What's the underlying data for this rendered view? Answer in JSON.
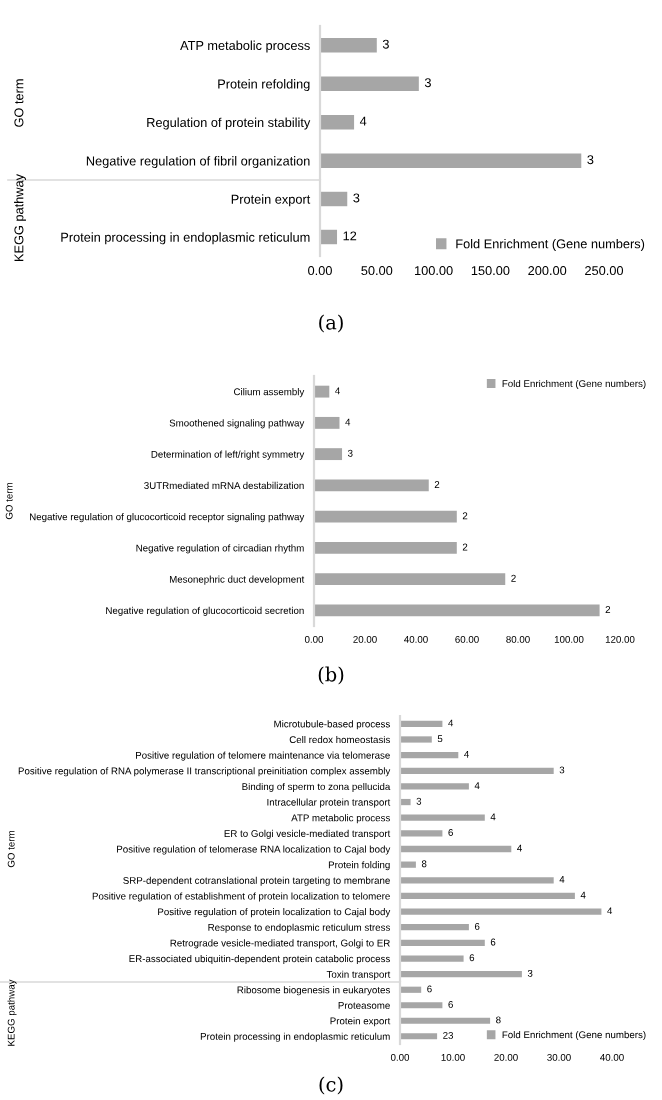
{
  "chart_data": [
    {
      "type": "bar",
      "orientation": "horizontal",
      "ylabel": "GO term",
      "tick_labels": "y",
      "categories": [
        "ATP metabolic process",
        "Protein refolding",
        "Regulation of protein stability",
        "Negative regulation of fibril organization"
      ],
      "series": [
        {
          "color": "#a6a6a6",
          "values": [
            50,
            87,
            30,
            230
          ]
        }
      ],
      "xlim": [
        0,
        250
      ],
      "annotations": [
        {
          "text": "3",
          "x": 50,
          "y": "ATP metabolic process"
        },
        {
          "text": "3",
          "x": 87,
          "y": "Protein refolding"
        },
        {
          "text": "4",
          "x": 30,
          "y": "Regulation of protein stability"
        },
        {
          "text": "3",
          "x": 230,
          "y": "Negative regulation of fibril organization"
        }
      ]
    },
    {
      "type": "bar",
      "orientation": "horizontal",
      "ylabel": "KEGG pathway",
      "categories": [
        "Protein export",
        "Protein processing in endoplasmic reticulum"
      ],
      "series": [
        {
          "name": "Fold Enrichment (Gene numbers)",
          "color": "#a6a6a6",
          "values": [
            24,
            15
          ]
        }
      ],
      "xlim": [
        0,
        250
      ],
      "xticks": [
        {
          "value": 0,
          "label": "0.00"
        },
        {
          "value": 50,
          "label": "50.00"
        },
        {
          "value": 100,
          "label": "100.00"
        },
        {
          "value": 150,
          "label": "150.00"
        },
        {
          "value": 200,
          "label": "200.00"
        },
        {
          "value": 250,
          "label": "250.00"
        }
      ],
      "legend": "bottom right",
      "annotations": [
        {
          "text": "3",
          "x": 24,
          "y": "Protein export"
        },
        {
          "text": "12",
          "x": 15,
          "y": "Protein processing in endoplasmic reticulum"
        },
        "(a)"
      ]
    },
    {
      "type": "bar",
      "orientation": "horizontal",
      "ylabel": "GO term",
      "categories": [
        "Cilium assembly",
        "Smoothened signaling pathway",
        "Determination of left/right symmetry",
        "3UTRmediated mRNA destabilization",
        "Negative regulation of glucocorticoid receptor signaling pathway",
        "Negative regulation of circadian rhythm",
        "Mesonephric duct development",
        "Negative regulation of glucocorticoid secretion"
      ],
      "series": [
        {
          "name": "Fold Enrichment (Gene numbers)",
          "color": "#a6a6a6",
          "values": [
            6,
            10,
            11,
            45,
            56,
            56,
            75,
            112
          ]
        }
      ],
      "xlim": [
        0,
        120
      ],
      "xticks": [
        {
          "value": 0,
          "label": "0.00"
        },
        {
          "value": 20,
          "label": "20.00"
        },
        {
          "value": 40,
          "label": "40.00"
        },
        {
          "value": 60,
          "label": "60.00"
        },
        {
          "value": 80,
          "label": "80.00"
        },
        {
          "value": 100,
          "label": "100.00"
        },
        {
          "value": 120,
          "label": "120.00"
        }
      ],
      "legend": "top right",
      "annotations": [
        {
          "text": "4",
          "x": 6,
          "y": "Cilium assembly"
        },
        {
          "text": "4",
          "x": 10,
          "y": "Smoothened signaling pathway"
        },
        {
          "text": "3",
          "x": 11,
          "y": "Determination of left/right symmetry"
        },
        {
          "text": "2",
          "x": 45,
          "y": "3UTRmediated mRNA destabilization"
        },
        {
          "text": "2",
          "x": 56,
          "y": "Negative regulation of glucocorticoid receptor signaling pathway"
        },
        {
          "text": "2",
          "x": 56,
          "y": "Negative regulation of circadian rhythm"
        },
        {
          "text": "2",
          "x": 75,
          "y": "Mesonephric duct development"
        },
        {
          "text": "2",
          "x": 112,
          "y": "Negative regulation of glucocorticoid secretion"
        },
        "(b)"
      ]
    },
    {
      "type": "bar",
      "orientation": "horizontal",
      "ylabel": "GO term",
      "tick_labels": "y",
      "categories": [
        "Microtubule-based process",
        "Cell redox homeostasis",
        "Positive regulation of telomere maintenance via telomerase",
        "Positive regulation of RNA polymerase II transcriptional preinitiation complex assembly",
        "Binding of sperm to zona pellucida",
        "Intracellular protein transport",
        "ATP metabolic process",
        "ER to Golgi vesicle-mediated transport",
        "Positive regulation of telomerase RNA localization to Cajal body",
        "Protein folding",
        "SRP-dependent cotranslational protein targeting to membrane",
        "Positive regulation of establishment of protein localization to telomere",
        "Positive regulation of protein localization to Cajal body",
        "Response to endoplasmic reticulum stress",
        "Retrograde vesicle-mediated transport, Golgi to ER",
        "ER-associated ubiquitin-dependent protein catabolic process",
        "Toxin transport"
      ],
      "series": [
        {
          "color": "#a6a6a6",
          "values": [
            8,
            6,
            11,
            29,
            13,
            2,
            16,
            8,
            21,
            3,
            29,
            33,
            38,
            13,
            16,
            12,
            23
          ]
        }
      ],
      "xlim": [
        0,
        40
      ],
      "annotations": [
        {
          "text": "4",
          "x": 8,
          "y": "Microtubule-based process"
        },
        {
          "text": "5",
          "x": 6,
          "y": "Cell redox homeostasis"
        },
        {
          "text": "4",
          "x": 11,
          "y": "Positive regulation of telomere maintenance via telomerase"
        },
        {
          "text": "3",
          "x": 29,
          "y": "Positive regulation of RNA polymerase II transcriptional preinitiation complex assembly"
        },
        {
          "text": "4",
          "x": 13,
          "y": "Binding of sperm to zona pellucida"
        },
        {
          "text": "3",
          "x": 2,
          "y": "Intracellular protein transport"
        },
        {
          "text": "4",
          "x": 16,
          "y": "ATP metabolic process"
        },
        {
          "text": "6",
          "x": 8,
          "y": "ER to Golgi vesicle-mediated transport"
        },
        {
          "text": "4",
          "x": 21,
          "y": "Positive regulation of telomerase RNA localization to Cajal body"
        },
        {
          "text": "8",
          "x": 3,
          "y": "Protein folding"
        },
        {
          "text": "4",
          "x": 29,
          "y": "SRP-dependent cotranslational protein targeting to membrane"
        },
        {
          "text": "4",
          "x": 33,
          "y": "Positive regulation of establishment of protein localization to telomere"
        },
        {
          "text": "4",
          "x": 38,
          "y": "Positive regulation of protein localization to Cajal body"
        },
        {
          "text": "6",
          "x": 13,
          "y": "Response to endoplasmic reticulum stress"
        },
        {
          "text": "6",
          "x": 16,
          "y": "Retrograde vesicle-mediated transport, Golgi to ER"
        },
        {
          "text": "6",
          "x": 12,
          "y": "ER-associated ubiquitin-dependent protein catabolic process"
        },
        {
          "text": "3",
          "x": 23,
          "y": "Toxin transport"
        }
      ]
    },
    {
      "type": "bar",
      "orientation": "horizontal",
      "ylabel": "KEGG pathway",
      "categories": [
        "Ribosome biogenesis in eukaryotes",
        "Proteasome",
        "Protein export",
        "Protein processing in endoplasmic reticulum"
      ],
      "series": [
        {
          "name": "Fold Enrichment (Gene numbers)",
          "color": "#a6a6a6",
          "values": [
            4,
            8,
            17,
            7
          ]
        }
      ],
      "xlim": [
        0,
        40
      ],
      "xticks": [
        {
          "value": 0,
          "label": "0.00"
        },
        {
          "value": 10,
          "label": "10.00"
        },
        {
          "value": 20,
          "label": "20.00"
        },
        {
          "value": 30,
          "label": "30.00"
        },
        {
          "value": 40,
          "label": "40.00"
        }
      ],
      "legend": "bottom right",
      "annotations": [
        {
          "text": "6",
          "x": 4,
          "y": "Ribosome biogenesis in eukaryotes"
        },
        {
          "text": "6",
          "x": 8,
          "y": "Proteasome"
        },
        {
          "text": "8",
          "x": 17,
          "y": "Protein export"
        },
        {
          "text": "23",
          "x": 7,
          "y": "Protein processing in endoplasmic reticulum"
        },
        "(c)"
      ]
    }
  ]
}
